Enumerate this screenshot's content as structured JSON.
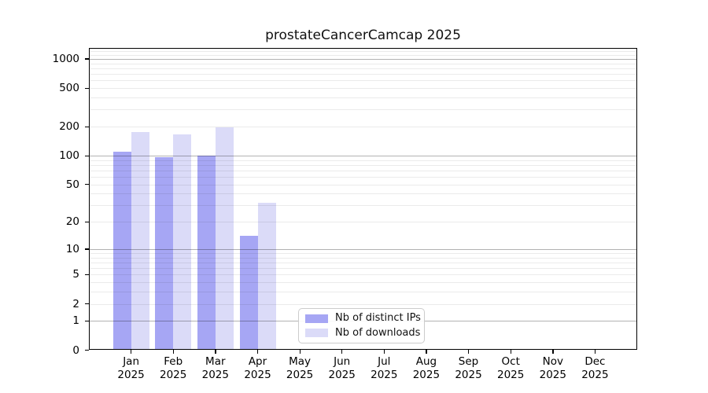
{
  "chart_data": {
    "type": "bar",
    "title": "prostateCancerCamcap 2025",
    "year_label": "2025",
    "months": [
      "Jan",
      "Feb",
      "Mar",
      "Apr",
      "May",
      "Jun",
      "Jul",
      "Aug",
      "Sep",
      "Oct",
      "Nov",
      "Dec"
    ],
    "categories": [
      "Jan 2025",
      "Feb 2025",
      "Mar 2025",
      "Apr 2025",
      "May 2025",
      "Jun 2025",
      "Jul 2025",
      "Aug 2025",
      "Sep 2025",
      "Oct 2025",
      "Nov 2025",
      "Dec 2025"
    ],
    "series": [
      {
        "name": "Nb of distinct IPs",
        "color": "#a6a6f4",
        "values": [
          110,
          97,
          100,
          14,
          0,
          0,
          0,
          0,
          0,
          0,
          0,
          0
        ]
      },
      {
        "name": "Nb of downloads",
        "color": "#dbdbf8",
        "values": [
          175,
          165,
          195,
          32,
          0,
          0,
          0,
          0,
          0,
          0,
          0,
          0
        ]
      }
    ],
    "yscale": "log1p",
    "yticks": [
      0,
      1,
      2,
      5,
      10,
      20,
      50,
      100,
      200,
      500,
      1000
    ],
    "ylim": [
      0,
      1250
    ],
    "xlabel": "",
    "ylabel": "",
    "grid": true,
    "legend_position": "lower center"
  },
  "colors": {
    "background": "#ffffff",
    "axis": "#000000",
    "grid_major": "#b0b0b0",
    "grid_minor": "#ebebeb",
    "legend_border": "#cccccc",
    "text": "#000000"
  }
}
